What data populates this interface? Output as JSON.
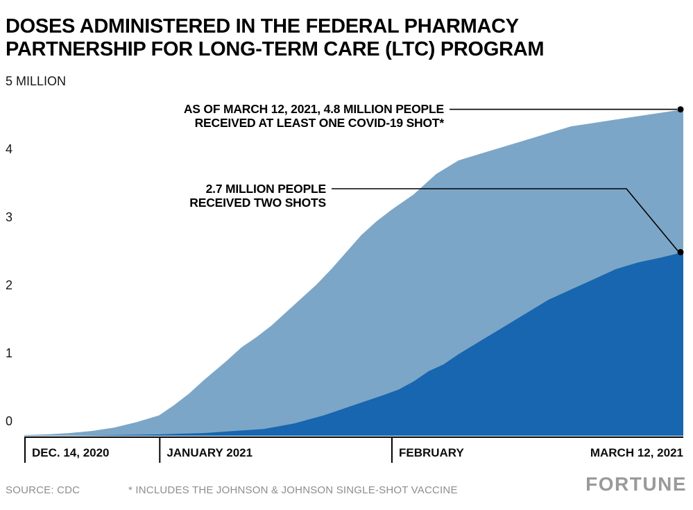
{
  "title": {
    "lines": [
      "DOSES ADMINISTERED IN THE FEDERAL PHARMACY",
      "PARTNERSHIP FOR LONG-TERM CARE (LTC) PROGRAM"
    ]
  },
  "chart_data": {
    "type": "area",
    "title": "Doses administered in the federal pharmacy partnership for long-term care (LTC) program",
    "x_unit": "days since Dec. 14, 2020",
    "x_range_days": [
      0,
      88
    ],
    "ylim": [
      0,
      5
    ],
    "y_ticks": [
      "0",
      "1",
      "2",
      "3",
      "4"
    ],
    "y_top_label": "5 MILLION",
    "x_ticks": [
      {
        "day": 0,
        "label": "DEC. 14, 2020"
      },
      {
        "day": 18,
        "label": "JANUARY 2021"
      },
      {
        "day": 49,
        "label": "FEBRUARY"
      },
      {
        "day": 88,
        "label": "MARCH 12, 2021"
      }
    ],
    "series": [
      {
        "name": "People who received at least one COVID-19 shot (millions)",
        "color": "#7CA6C7",
        "end_value": 4.8,
        "points": [
          [
            0,
            0.01
          ],
          [
            3,
            0.02
          ],
          [
            6,
            0.04
          ],
          [
            9,
            0.07
          ],
          [
            12,
            0.12
          ],
          [
            15,
            0.2
          ],
          [
            18,
            0.3
          ],
          [
            20,
            0.45
          ],
          [
            22,
            0.62
          ],
          [
            24,
            0.82
          ],
          [
            27,
            1.1
          ],
          [
            29,
            1.3
          ],
          [
            31,
            1.45
          ],
          [
            33,
            1.62
          ],
          [
            35,
            1.82
          ],
          [
            37,
            2.02
          ],
          [
            39,
            2.22
          ],
          [
            41,
            2.45
          ],
          [
            43,
            2.7
          ],
          [
            45,
            2.95
          ],
          [
            47,
            3.15
          ],
          [
            49,
            3.32
          ],
          [
            52,
            3.55
          ],
          [
            55,
            3.85
          ],
          [
            58,
            4.05
          ],
          [
            61,
            4.15
          ],
          [
            64,
            4.25
          ],
          [
            67,
            4.35
          ],
          [
            70,
            4.45
          ],
          [
            73,
            4.55
          ],
          [
            76,
            4.6
          ],
          [
            79,
            4.65
          ],
          [
            82,
            4.7
          ],
          [
            85,
            4.75
          ],
          [
            88,
            4.8
          ]
        ]
      },
      {
        "name": "People who received two shots (millions)",
        "color": "#1766AF",
        "end_value": 2.7,
        "points": [
          [
            0,
            0
          ],
          [
            6,
            0
          ],
          [
            12,
            0.01
          ],
          [
            18,
            0.02
          ],
          [
            24,
            0.04
          ],
          [
            28,
            0.07
          ],
          [
            32,
            0.1
          ],
          [
            36,
            0.18
          ],
          [
            40,
            0.3
          ],
          [
            44,
            0.45
          ],
          [
            48,
            0.6
          ],
          [
            50,
            0.68
          ],
          [
            52,
            0.8
          ],
          [
            54,
            0.95
          ],
          [
            56,
            1.05
          ],
          [
            58,
            1.2
          ],
          [
            61,
            1.4
          ],
          [
            64,
            1.6
          ],
          [
            67,
            1.8
          ],
          [
            70,
            2.0
          ],
          [
            73,
            2.15
          ],
          [
            76,
            2.3
          ],
          [
            79,
            2.45
          ],
          [
            82,
            2.55
          ],
          [
            85,
            2.62
          ],
          [
            88,
            2.7
          ]
        ]
      }
    ],
    "annotations": [
      {
        "lines": [
          "AS OF MARCH 12, 2021, 4.8 MILLION PEOPLE",
          "RECEIVED AT LEAST ONE COVID-19 SHOT*"
        ],
        "value": 4.8
      },
      {
        "lines": [
          "2.7 MILLION PEOPLE",
          "RECEIVED TWO SHOTS"
        ],
        "value": 2.7
      }
    ]
  },
  "footer": {
    "source": "SOURCE: CDC",
    "footnote": "* INCLUDES THE JOHNSON & JOHNSON SINGLE-SHOT VACCINE",
    "logo": "FORTUNE"
  }
}
